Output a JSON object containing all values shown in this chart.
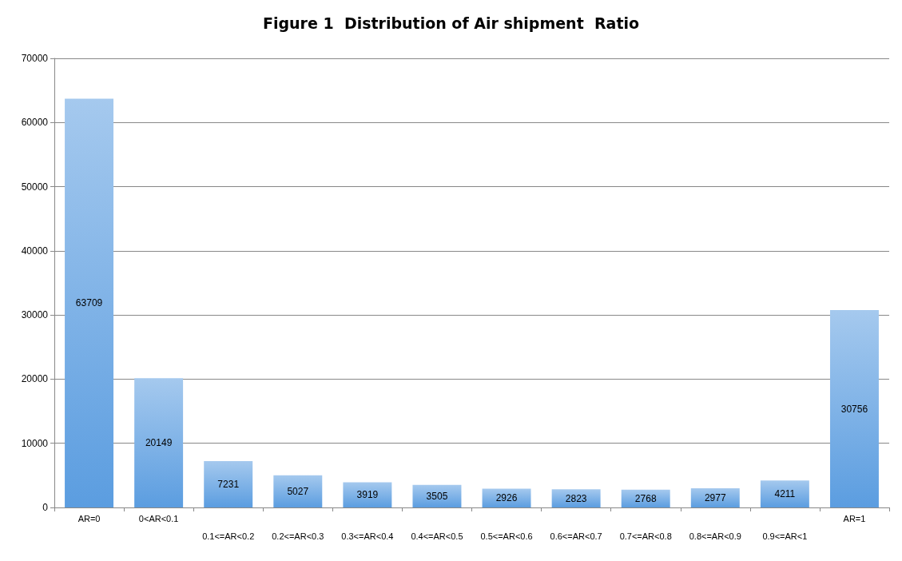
{
  "chart_data": {
    "type": "bar",
    "title": "Figure 1  Distribution of Air shipment  Ratio",
    "categories": [
      "AR=0",
      "0<AR<0.1",
      "0.1<=AR<0.2",
      "0.2<=AR<0.3",
      "0.3<=AR<0.4",
      "0.4<=AR<0.5",
      "0.5<=AR<0.6",
      "0.6<=AR<0.7",
      "0.7<=AR<0.8",
      "0.8<=AR<0.9",
      "0.9<=AR<1",
      "AR=1"
    ],
    "values": [
      63709,
      20149,
      7231,
      5027,
      3919,
      3505,
      2926,
      2823,
      2768,
      2977,
      4211,
      30756
    ],
    "color": "#5b9de0",
    "ylim": [
      0,
      70000
    ],
    "yticks": [
      0,
      10000,
      20000,
      30000,
      40000,
      50000,
      60000,
      70000
    ],
    "grid": "y",
    "data_labels": true
  }
}
